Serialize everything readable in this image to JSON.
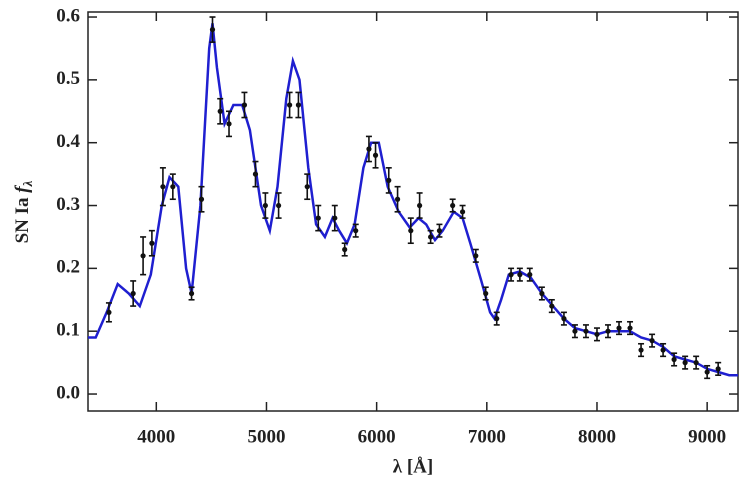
{
  "chart_data": {
    "type": "scatter",
    "x_label": "λ [Å]",
    "y_label": [
      "SN Ia",
      "f",
      "λ"
    ],
    "xlim": [
      3380,
      9280
    ],
    "ylim": [
      -0.027,
      0.608
    ],
    "xticks": [
      4000,
      5000,
      6000,
      7000,
      8000,
      9000
    ],
    "yticks": [
      {
        "value": 0,
        "label": "0.0"
      },
      0.1,
      0.2,
      0.3,
      0.4,
      0.5,
      0.6
    ],
    "series": [
      {
        "style": "line",
        "color": "#1f1fd0",
        "x": [
          3380,
          3450,
          3550,
          3650,
          3750,
          3850,
          3950,
          4050,
          4120,
          4200,
          4270,
          4320,
          4400,
          4480,
          4510,
          4550,
          4620,
          4700,
          4780,
          4850,
          4950,
          5030,
          5100,
          5180,
          5240,
          5300,
          5380,
          5450,
          5530,
          5600,
          5660,
          5730,
          5800,
          5880,
          5950,
          6020,
          6100,
          6200,
          6300,
          6380,
          6450,
          6530,
          6600,
          6700,
          6780,
          6850,
          6950,
          7030,
          7070,
          7130,
          7200,
          7300,
          7400,
          7500,
          7600,
          7700,
          7800,
          7900,
          8000,
          8100,
          8200,
          8300,
          8400,
          8500,
          8600,
          8700,
          8800,
          8900,
          9000,
          9100,
          9200,
          9280
        ],
        "values": [
          0.09,
          0.09,
          0.13,
          0.175,
          0.16,
          0.14,
          0.19,
          0.3,
          0.345,
          0.33,
          0.2,
          0.16,
          0.3,
          0.55,
          0.59,
          0.52,
          0.43,
          0.46,
          0.46,
          0.42,
          0.3,
          0.26,
          0.33,
          0.47,
          0.53,
          0.5,
          0.36,
          0.27,
          0.25,
          0.28,
          0.26,
          0.24,
          0.27,
          0.36,
          0.4,
          0.4,
          0.33,
          0.29,
          0.265,
          0.28,
          0.27,
          0.245,
          0.26,
          0.29,
          0.28,
          0.24,
          0.18,
          0.13,
          0.12,
          0.15,
          0.19,
          0.195,
          0.185,
          0.16,
          0.14,
          0.12,
          0.105,
          0.1,
          0.095,
          0.1,
          0.1,
          0.1,
          0.09,
          0.085,
          0.075,
          0.06,
          0.055,
          0.05,
          0.04,
          0.035,
          0.03,
          0.03
        ]
      },
      {
        "style": "errorbar",
        "color": "#111111",
        "x": [
          3570,
          3790,
          3880,
          3960,
          4060,
          4150,
          4320,
          4410,
          4510,
          4580,
          4660,
          4800,
          4900,
          4990,
          5110,
          5210,
          5290,
          5370,
          5470,
          5620,
          5710,
          5810,
          5930,
          5990,
          6110,
          6190,
          6310,
          6390,
          6490,
          6570,
          6690,
          6780,
          6900,
          6990,
          7090,
          7220,
          7300,
          7390,
          7500,
          7590,
          7700,
          7800,
          7900,
          8000,
          8100,
          8200,
          8300,
          8400,
          8500,
          8600,
          8700,
          8800,
          8900,
          9000,
          9100
        ],
        "values": [
          0.13,
          0.16,
          0.22,
          0.24,
          0.33,
          0.33,
          0.16,
          0.31,
          0.58,
          0.45,
          0.43,
          0.46,
          0.35,
          0.3,
          0.3,
          0.46,
          0.46,
          0.33,
          0.28,
          0.28,
          0.23,
          0.26,
          0.39,
          0.38,
          0.34,
          0.31,
          0.26,
          0.3,
          0.25,
          0.26,
          0.3,
          0.29,
          0.22,
          0.16,
          0.12,
          0.19,
          0.19,
          0.19,
          0.16,
          0.14,
          0.12,
          0.1,
          0.1,
          0.095,
          0.1,
          0.105,
          0.105,
          0.07,
          0.085,
          0.07,
          0.055,
          0.05,
          0.05,
          0.035,
          0.04
        ],
        "errors": [
          0.015,
          0.02,
          0.03,
          0.02,
          0.03,
          0.02,
          0.01,
          0.02,
          0.02,
          0.02,
          0.02,
          0.02,
          0.02,
          0.02,
          0.02,
          0.02,
          0.02,
          0.02,
          0.02,
          0.02,
          0.01,
          0.01,
          0.02,
          0.02,
          0.02,
          0.02,
          0.02,
          0.02,
          0.01,
          0.01,
          0.01,
          0.01,
          0.01,
          0.01,
          0.01,
          0.01,
          0.01,
          0.01,
          0.01,
          0.01,
          0.01,
          0.01,
          0.01,
          0.01,
          0.01,
          0.01,
          0.01,
          0.01,
          0.01,
          0.01,
          0.01,
          0.01,
          0.01,
          0.01,
          0.01
        ]
      }
    ]
  }
}
